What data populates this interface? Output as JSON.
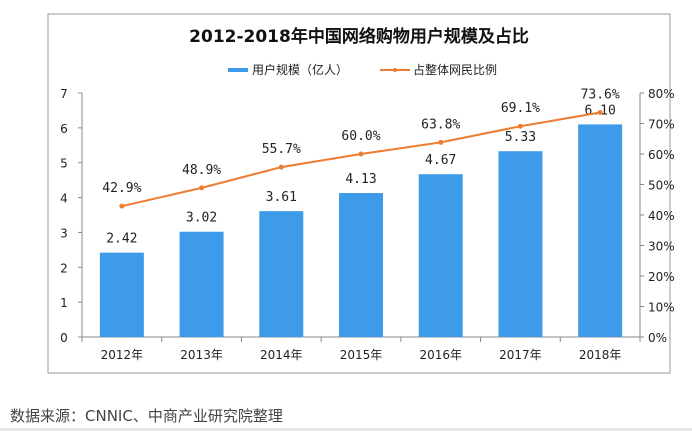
{
  "chart_data": {
    "type": "bar+line",
    "title": "2012-2018年中国网络购物用户规模及占比",
    "categories": [
      "2012年",
      "2013年",
      "2014年",
      "2015年",
      "2016年",
      "2017年",
      "2018年"
    ],
    "series": [
      {
        "name": "用户规模（亿人）",
        "type": "bar",
        "axis": "left",
        "values": [
          2.42,
          3.02,
          3.61,
          4.13,
          4.67,
          5.33,
          6.1
        ],
        "labels": [
          "2.42",
          "3.02",
          "3.61",
          "4.13",
          "4.67",
          "5.33",
          "6.10"
        ],
        "color": "#3d9be9"
      },
      {
        "name": "占整体网民比例",
        "type": "line",
        "axis": "right",
        "values": [
          42.9,
          48.9,
          55.7,
          60.0,
          63.8,
          69.1,
          73.6
        ],
        "labels": [
          "42.9%",
          "48.9%",
          "55.7%",
          "60.0%",
          "63.8%",
          "69.1%",
          "73.6%"
        ],
        "color": "#ed7d31"
      }
    ],
    "ylim_left": [
      0,
      7
    ],
    "left_ticks": [
      "0",
      "1",
      "2",
      "3",
      "4",
      "5",
      "6",
      "7"
    ],
    "ylim_right": [
      0,
      80
    ],
    "right_ticks": [
      "0%",
      "10%",
      "20%",
      "30%",
      "40%",
      "50%",
      "60%",
      "70%",
      "80%"
    ],
    "grid": false,
    "legend_position": "top"
  },
  "footer": {
    "source": "数据来源：CNNIC、中商产业研究院整理"
  }
}
